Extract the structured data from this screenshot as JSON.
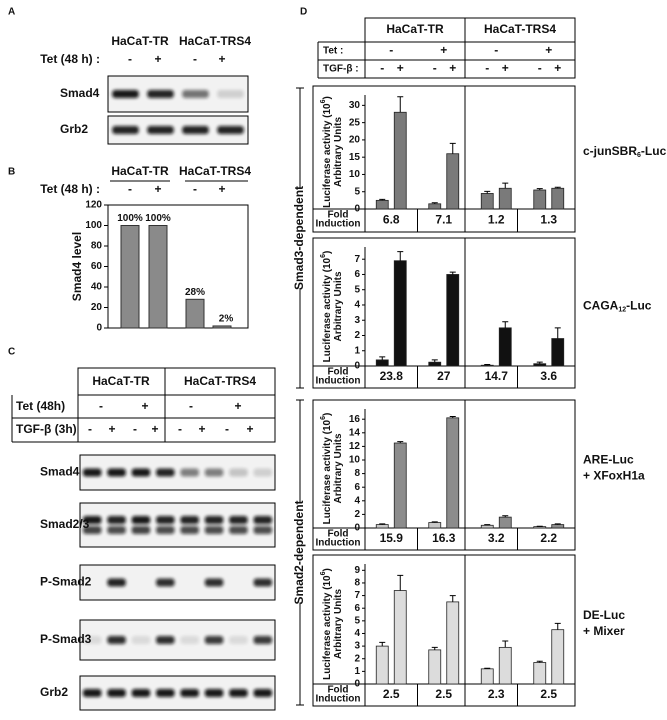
{
  "panel_labels": [
    "A",
    "B",
    "C",
    "D"
  ],
  "panel_a": {
    "cell_lines": [
      "HaCaT-TR",
      "HaCaT-TRS4"
    ],
    "tet_label": "Tet (48 h) :",
    "signs": [
      "-",
      "+",
      "-",
      "+"
    ],
    "blots": [
      "Smad4",
      "Grb2"
    ]
  },
  "panel_b": {
    "cell_lines": [
      "HaCaT-TR",
      "HaCaT-TRS4"
    ],
    "tet_label": "Tet (48 h) :",
    "signs": [
      "-",
      "+",
      "-",
      "+"
    ]
  },
  "panel_c": {
    "cell_lines": [
      "HaCaT-TR",
      "HaCaT-TRS4"
    ],
    "tet_label": "Tet (48h)",
    "tgf_label": "TGF-β (3h)",
    "tet_signs": [
      "-",
      "+",
      "-",
      "+"
    ],
    "tgf_signs": [
      "-",
      "+",
      "-",
      "+",
      "-",
      "+",
      "-",
      "+"
    ],
    "blots": [
      "Smad4",
      "Smad2/3",
      "P-Smad2",
      "P-Smad3",
      "Grb2"
    ]
  },
  "panel_d": {
    "cell_lines": [
      "HaCaT-TR",
      "HaCaT-TRS4"
    ],
    "tet_label": "Tet :",
    "tgf_label": "TGF-β :",
    "tet_signs": [
      "-",
      "+",
      "-",
      "+"
    ],
    "tgf_signs": [
      "-",
      "+",
      "-",
      "+",
      "-",
      "+",
      "-",
      "+"
    ],
    "groups": [
      "Smad3-dependent",
      "Smad2-dependent"
    ],
    "fold_label": [
      "Fold",
      "Induction"
    ]
  },
  "chart_data": [
    {
      "type": "bar",
      "ylabel": "Smad4  level",
      "categories": [
        null,
        null,
        null,
        null
      ],
      "values": [
        100,
        100,
        28,
        2
      ],
      "value_labels": [
        "100%",
        "100%",
        "28%",
        "2%"
      ],
      "color": "#8a8a8a",
      "ylim": [
        0,
        120
      ],
      "yticks": [
        0,
        20,
        40,
        60,
        80,
        100,
        120
      ]
    },
    {
      "type": "grouped_bar",
      "title_lines": [
        [
          "c-junSBR",
          "6",
          "-Luc"
        ]
      ],
      "ylabel_lines": [
        [
          "Luciferase activity (10",
          "6",
          ")"
        ],
        [
          "Arbitrary Units"
        ]
      ],
      "categories": [
        null,
        null,
        null,
        null
      ],
      "series": [
        {
          "color": "#7a7a7a",
          "values": [
            2.5,
            1.5,
            4.5,
            5.5
          ],
          "errors": [
            0.3,
            0.3,
            0.6,
            0.4
          ]
        },
        {
          "color": "#7a7a7a",
          "values": [
            28,
            16,
            6,
            6
          ],
          "errors": [
            4.5,
            3,
            1.5,
            0.3
          ]
        }
      ],
      "ylim": [
        0,
        33
      ],
      "yticks": [
        0,
        5,
        10,
        15,
        20,
        25,
        30
      ],
      "fold_induction": [
        6.8,
        7.1,
        1.2,
        1.3
      ]
    },
    {
      "type": "grouped_bar",
      "title_lines": [
        [
          "CAGA",
          "12",
          "-Luc"
        ]
      ],
      "ylabel_lines": [
        [
          "Luciferase activity (10",
          "6",
          ")"
        ],
        [
          "Arbitrary Units"
        ]
      ],
      "categories": [
        null,
        null,
        null,
        null
      ],
      "series": [
        {
          "color": "#111111",
          "values": [
            0.4,
            0.25,
            0.05,
            0.15
          ],
          "errors": [
            0.2,
            0.15,
            0.05,
            0.1
          ]
        },
        {
          "color": "#111111",
          "values": [
            6.9,
            6.0,
            2.5,
            1.8
          ],
          "errors": [
            0.6,
            0.15,
            0.4,
            0.7
          ]
        }
      ],
      "ylim": [
        0,
        7.8
      ],
      "yticks": [
        0,
        1,
        2,
        3,
        4,
        5,
        6,
        7
      ],
      "fold_induction": [
        23.8,
        27,
        14.7,
        3.6
      ]
    },
    {
      "type": "grouped_bar",
      "title_lines": [
        [
          "ARE-Luc"
        ],
        [
          "+ XFoxH1a"
        ]
      ],
      "ylabel_lines": [
        [
          "Luciferase activity (10",
          "6",
          ")"
        ],
        [
          "Arbitrary Units"
        ]
      ],
      "categories": [
        null,
        null,
        null,
        null
      ],
      "series": [
        {
          "color": "#c8c8c8",
          "values": [
            0.5,
            0.8,
            0.4,
            0.2
          ],
          "errors": [
            0.1,
            0.1,
            0.1,
            0.05
          ]
        },
        {
          "color": "#8c8c8c",
          "values": [
            12.5,
            16.2,
            1.6,
            0.5
          ],
          "errors": [
            0.2,
            0.2,
            0.2,
            0.1
          ]
        }
      ],
      "ylim": [
        0,
        17.5
      ],
      "yticks": [
        0,
        2,
        4,
        6,
        8,
        10,
        12,
        14,
        16
      ],
      "fold_induction": [
        15.9,
        16.3,
        3.2,
        2.2
      ]
    },
    {
      "type": "grouped_bar",
      "title_lines": [
        [
          "DE-Luc"
        ],
        [
          "+ Mixer"
        ]
      ],
      "ylabel_lines": [
        [
          "Luciferase activity (10",
          "6",
          ")"
        ],
        [
          "Arbitrary Units"
        ]
      ],
      "categories": [
        null,
        null,
        null,
        null
      ],
      "series": [
        {
          "color": "#dcdcdc",
          "values": [
            3,
            2.7,
            1.2,
            1.7
          ],
          "errors": [
            0.3,
            0.2,
            0.05,
            0.1
          ]
        },
        {
          "color": "#dcdcdc",
          "values": [
            7.4,
            6.5,
            2.9,
            4.3
          ],
          "errors": [
            1.2,
            0.5,
            0.5,
            0.5
          ]
        }
      ],
      "ylim": [
        0,
        9.5
      ],
      "yticks": [
        0,
        1,
        2,
        3,
        4,
        5,
        6,
        7,
        8,
        9
      ],
      "fold_induction": [
        2.5,
        2.5,
        2.3,
        2.5
      ]
    }
  ]
}
